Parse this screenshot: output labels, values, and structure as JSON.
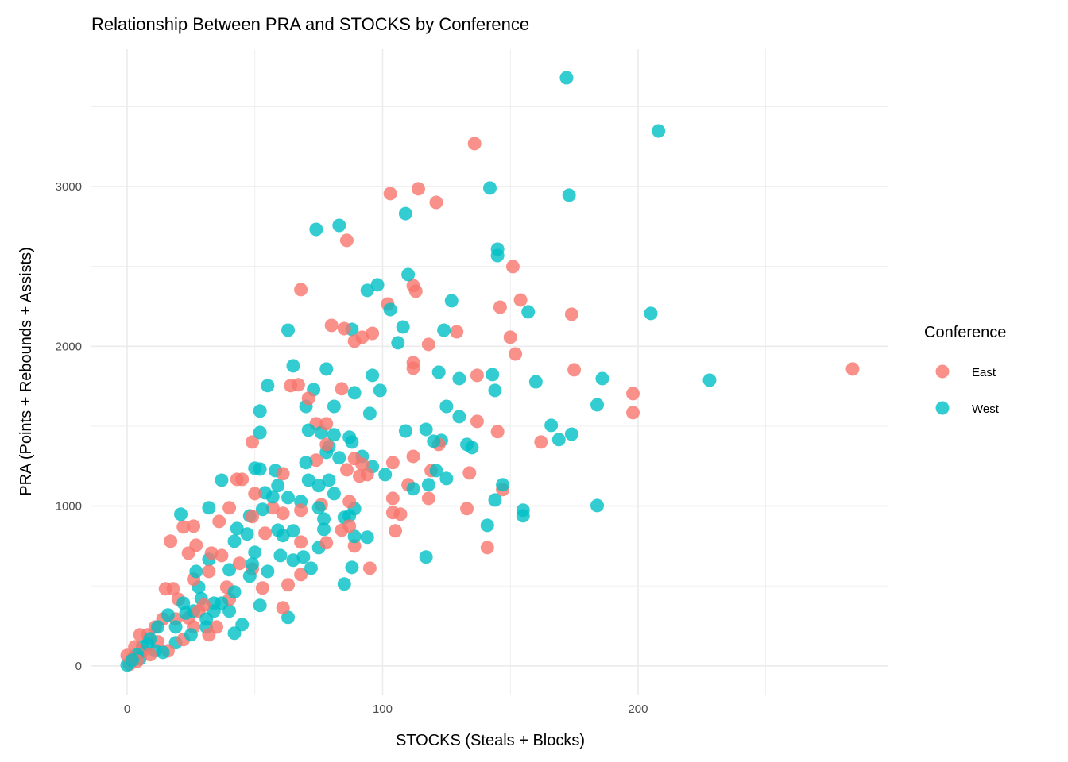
{
  "chart_data": {
    "type": "scatter",
    "title": "Relationship Between PRA and STOCKS by Conference",
    "xlabel": "STOCKS (Steals + Blocks)",
    "ylabel": "PRA (Points + Rebounds + Assists)",
    "xlim": [
      -14,
      298
    ],
    "ylim": [
      -180,
      3860
    ],
    "x_ticks": [
      "0",
      "100",
      "200"
    ],
    "y_ticks": [
      "0",
      "1000",
      "2000",
      "3000"
    ],
    "grid": true,
    "legend": {
      "title": "Conference",
      "position": "right"
    },
    "series": [
      {
        "name": "East",
        "color": "#F8766D",
        "points": [
          [
            136,
            3269
          ],
          [
            103,
            2956
          ],
          [
            114,
            2986
          ],
          [
            121,
            2901
          ],
          [
            86,
            2663
          ],
          [
            151,
            2499
          ],
          [
            68,
            2355
          ],
          [
            102,
            2265
          ],
          [
            112,
            2380
          ],
          [
            113,
            2345
          ],
          [
            154,
            2290
          ],
          [
            146,
            2245
          ],
          [
            174,
            2201
          ],
          [
            80,
            2131
          ],
          [
            85,
            2111
          ],
          [
            96,
            2081
          ],
          [
            92,
            2057
          ],
          [
            89,
            2032
          ],
          [
            129,
            2091
          ],
          [
            150,
            2057
          ],
          [
            118,
            2012
          ],
          [
            152,
            1952
          ],
          [
            112,
            1898
          ],
          [
            112,
            1863
          ],
          [
            137,
            1818
          ],
          [
            175,
            1853
          ],
          [
            284,
            1858
          ],
          [
            64,
            1754
          ],
          [
            67,
            1759
          ],
          [
            71,
            1674
          ],
          [
            84,
            1734
          ],
          [
            198,
            1704
          ],
          [
            198,
            1585
          ],
          [
            137,
            1530
          ],
          [
            145,
            1466
          ],
          [
            74,
            1515
          ],
          [
            78,
            1515
          ],
          [
            162,
            1401
          ],
          [
            49,
            1401
          ],
          [
            122,
            1386
          ],
          [
            78,
            1386
          ],
          [
            112,
            1311
          ],
          [
            74,
            1287
          ],
          [
            104,
            1272
          ],
          [
            89,
            1297
          ],
          [
            92,
            1262
          ],
          [
            86,
            1227
          ],
          [
            91,
            1187
          ],
          [
            94,
            1197
          ],
          [
            61,
            1202
          ],
          [
            45,
            1167
          ],
          [
            43,
            1167
          ],
          [
            110,
            1133
          ],
          [
            119,
            1222
          ],
          [
            134,
            1207
          ],
          [
            147,
            1103
          ],
          [
            50,
            1078
          ],
          [
            104,
            1048
          ],
          [
            118,
            1048
          ],
          [
            87,
            1028
          ],
          [
            40,
            989
          ],
          [
            57,
            989
          ],
          [
            68,
            974
          ],
          [
            76,
            1008
          ],
          [
            104,
            959
          ],
          [
            107,
            949
          ],
          [
            133,
            984
          ],
          [
            61,
            954
          ],
          [
            105,
            845
          ],
          [
            87,
            874
          ],
          [
            84,
            849
          ],
          [
            36,
            904
          ],
          [
            22,
            869
          ],
          [
            26,
            874
          ],
          [
            17,
            780
          ],
          [
            24,
            705
          ],
          [
            27,
            755
          ],
          [
            33,
            705
          ],
          [
            54,
            830
          ],
          [
            68,
            775
          ],
          [
            89,
            750
          ],
          [
            78,
            770
          ],
          [
            141,
            740
          ],
          [
            95,
            611
          ],
          [
            68,
            571
          ],
          [
            63,
            507
          ],
          [
            53,
            487
          ],
          [
            49,
            606
          ],
          [
            49,
            934
          ],
          [
            61,
            363
          ],
          [
            15,
            482
          ],
          [
            18,
            482
          ],
          [
            5,
            194
          ],
          [
            0,
            65
          ],
          [
            32,
            194
          ],
          [
            35,
            243
          ],
          [
            22,
            164
          ],
          [
            16,
            94
          ],
          [
            9,
            70
          ],
          [
            28,
            343
          ],
          [
            39,
            492
          ],
          [
            44,
            641
          ],
          [
            26,
            542
          ],
          [
            20,
            417
          ],
          [
            14,
            293
          ],
          [
            8,
            194
          ],
          [
            3,
            119
          ],
          [
            2,
            45
          ],
          [
            32,
            591
          ],
          [
            37,
            690
          ],
          [
            26,
            243
          ],
          [
            19,
            293
          ],
          [
            11,
            243
          ],
          [
            40,
            417
          ],
          [
            30,
            380
          ],
          [
            24,
            300
          ],
          [
            12,
            150
          ],
          [
            6,
            90
          ],
          [
            4,
            30
          ],
          [
            1,
            10
          ]
        ]
      },
      {
        "name": "West",
        "color": "#00BFC4",
        "points": [
          [
            172,
            3681
          ],
          [
            208,
            3348
          ],
          [
            142,
            2991
          ],
          [
            173,
            2946
          ],
          [
            109,
            2831
          ],
          [
            83,
            2757
          ],
          [
            74,
            2732
          ],
          [
            145,
            2608
          ],
          [
            145,
            2568
          ],
          [
            110,
            2449
          ],
          [
            98,
            2385
          ],
          [
            94,
            2350
          ],
          [
            103,
            2230
          ],
          [
            127,
            2285
          ],
          [
            157,
            2216
          ],
          [
            205,
            2206
          ],
          [
            108,
            2121
          ],
          [
            106,
            2022
          ],
          [
            124,
            2101
          ],
          [
            63,
            2101
          ],
          [
            88,
            2106
          ],
          [
            65,
            1878
          ],
          [
            78,
            1858
          ],
          [
            96,
            1818
          ],
          [
            122,
            1838
          ],
          [
            143,
            1823
          ],
          [
            130,
            1798
          ],
          [
            160,
            1778
          ],
          [
            186,
            1798
          ],
          [
            228,
            1788
          ],
          [
            55,
            1754
          ],
          [
            73,
            1729
          ],
          [
            99,
            1724
          ],
          [
            144,
            1724
          ],
          [
            89,
            1709
          ],
          [
            70,
            1624
          ],
          [
            81,
            1624
          ],
          [
            125,
            1624
          ],
          [
            184,
            1634
          ],
          [
            52,
            1595
          ],
          [
            95,
            1580
          ],
          [
            130,
            1560
          ],
          [
            166,
            1505
          ],
          [
            52,
            1460
          ],
          [
            71,
            1475
          ],
          [
            109,
            1470
          ],
          [
            117,
            1480
          ],
          [
            174,
            1450
          ],
          [
            169,
            1416
          ],
          [
            76,
            1460
          ],
          [
            81,
            1446
          ],
          [
            87,
            1431
          ],
          [
            88,
            1401
          ],
          [
            120,
            1406
          ],
          [
            123,
            1411
          ],
          [
            133,
            1386
          ],
          [
            135,
            1366
          ],
          [
            79,
            1371
          ],
          [
            78,
            1336
          ],
          [
            83,
            1302
          ],
          [
            92,
            1311
          ],
          [
            70,
            1272
          ],
          [
            50,
            1237
          ],
          [
            52,
            1232
          ],
          [
            58,
            1222
          ],
          [
            96,
            1247
          ],
          [
            101,
            1197
          ],
          [
            121,
            1222
          ],
          [
            125,
            1172
          ],
          [
            118,
            1133
          ],
          [
            112,
            1108
          ],
          [
            147,
            1133
          ],
          [
            37,
            1162
          ],
          [
            59,
            1128
          ],
          [
            71,
            1162
          ],
          [
            75,
            1128
          ],
          [
            79,
            1162
          ],
          [
            54,
            1083
          ],
          [
            57,
            1058
          ],
          [
            63,
            1053
          ],
          [
            68,
            1028
          ],
          [
            81,
            1078
          ],
          [
            53,
            979
          ],
          [
            75,
            989
          ],
          [
            89,
            984
          ],
          [
            32,
            989
          ],
          [
            21,
            949
          ],
          [
            155,
            974
          ],
          [
            155,
            939
          ],
          [
            144,
            1038
          ],
          [
            184,
            1003
          ],
          [
            77,
            919
          ],
          [
            85,
            929
          ],
          [
            87,
            939
          ],
          [
            48,
            939
          ],
          [
            43,
            859
          ],
          [
            77,
            854
          ],
          [
            141,
            879
          ],
          [
            59,
            849
          ],
          [
            65,
            845
          ],
          [
            61,
            815
          ],
          [
            89,
            810
          ],
          [
            75,
            740
          ],
          [
            69,
            681
          ],
          [
            65,
            661
          ],
          [
            94,
            805
          ],
          [
            117,
            681
          ],
          [
            88,
            616
          ],
          [
            72,
            611
          ],
          [
            85,
            512
          ],
          [
            63,
            303
          ],
          [
            52,
            378
          ],
          [
            40,
            601
          ],
          [
            27,
            591
          ],
          [
            32,
            666
          ],
          [
            49,
            636
          ],
          [
            55,
            591
          ],
          [
            48,
            561
          ],
          [
            42,
            462
          ],
          [
            42,
            204
          ],
          [
            45,
            258
          ],
          [
            40,
            343
          ],
          [
            34,
            392
          ],
          [
            28,
            492
          ],
          [
            22,
            392
          ],
          [
            16,
            318
          ],
          [
            12,
            243
          ],
          [
            9,
            169
          ],
          [
            6,
            119
          ],
          [
            4,
            70
          ],
          [
            2,
            35
          ],
          [
            0,
            5
          ],
          [
            50,
            710
          ],
          [
            60,
            690
          ],
          [
            42,
            780
          ],
          [
            47,
            825
          ],
          [
            34,
            343
          ],
          [
            31,
            243
          ],
          [
            25,
            194
          ],
          [
            19,
            144
          ],
          [
            14,
            84
          ],
          [
            31,
            293
          ],
          [
            37,
            392
          ],
          [
            26,
            343
          ],
          [
            19,
            243
          ],
          [
            11,
            94
          ],
          [
            8,
            134
          ],
          [
            5,
            45
          ],
          [
            29,
            420
          ],
          [
            23,
            330
          ]
        ]
      }
    ]
  }
}
